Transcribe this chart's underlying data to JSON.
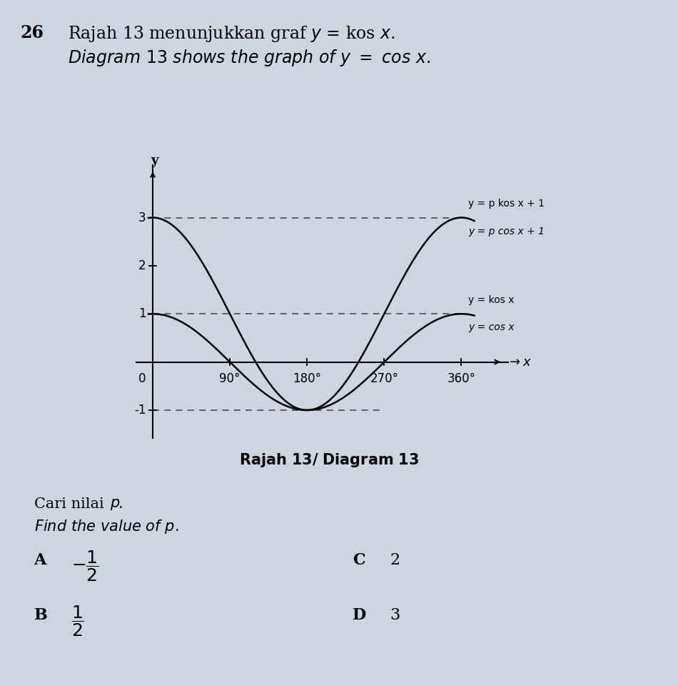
{
  "background_color": "#cdd5de",
  "curve_color": "#000000",
  "dashed_color": "#555555",
  "axis_color": "#000000",
  "x_ticks_deg": [
    90,
    180,
    270,
    360
  ],
  "ylim": [
    -1.6,
    4.1
  ],
  "xlim_deg": [
    -20,
    415
  ],
  "label_cos_x_line1": "y = kos x",
  "label_cos_x_line2": "y = cos x",
  "label_pcos_x_line1": "y = p kos x + 1",
  "label_pcos_x_line2": "y = p cos x + 1",
  "p": 2
}
